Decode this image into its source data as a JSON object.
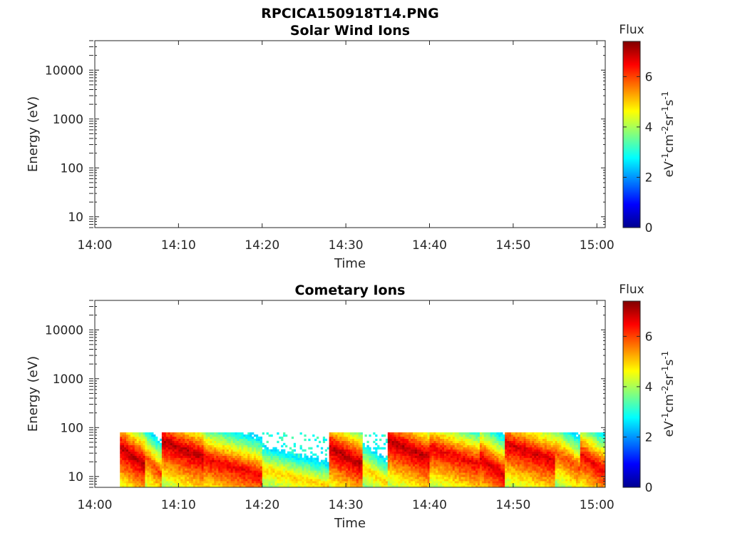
{
  "figure": {
    "title": "RPCICA150918T14.PNG"
  },
  "colors": {
    "axis": "#262626",
    "colormap": [
      "#00008f",
      "#0000ff",
      "#0080ff",
      "#00ffff",
      "#80ff80",
      "#ffff00",
      "#ff8000",
      "#ff0000",
      "#800000"
    ]
  },
  "chart_data": [
    {
      "type": "heatmap",
      "title": "Solar Wind Ions",
      "xlabel": "Time",
      "ylabel": "Energy (eV)",
      "x_ticks": [
        "14:00",
        "14:10",
        "14:20",
        "14:30",
        "14:40",
        "14:50",
        "15:00"
      ],
      "y_scale": "log",
      "y_ticks": [
        "10",
        "100",
        "1000",
        "10000"
      ],
      "ylim": [
        6,
        40000
      ],
      "colorbar": {
        "title": "Flux",
        "units": "eV-1cm-2sr-1s-1",
        "ticks": [
          "0",
          "2",
          "4",
          "6"
        ],
        "range": [
          0,
          7.4
        ]
      },
      "data_present": false,
      "grid": false
    },
    {
      "type": "heatmap",
      "title": "Cometary Ions",
      "xlabel": "Time",
      "ylabel": "Energy (eV)",
      "x_ticks": [
        "14:00",
        "14:10",
        "14:20",
        "14:30",
        "14:40",
        "14:50",
        "15:00"
      ],
      "y_scale": "log",
      "y_ticks": [
        "10",
        "100",
        "1000",
        "10000"
      ],
      "ylim": [
        6,
        40000
      ],
      "colorbar": {
        "title": "Flux",
        "units": "eV-1cm-2sr-1s-1",
        "ticks": [
          "0",
          "2",
          "4",
          "6"
        ],
        "range": [
          0,
          7.4
        ]
      },
      "data_present": true,
      "grid": false,
      "energy_max_eV": 80,
      "data_start": "14:03",
      "data_end": "15:01",
      "bands": [
        {
          "start": "14:03",
          "end": "14:06",
          "peak_energy_eV": 25,
          "peak_flux": 7.0
        },
        {
          "start": "14:06",
          "end": "14:08",
          "peak_energy_eV": 15,
          "peak_flux": 6.0
        },
        {
          "start": "14:08",
          "end": "14:13",
          "peak_energy_eV": 35,
          "peak_flux": 7.0
        },
        {
          "start": "14:13",
          "end": "14:20",
          "peak_energy_eV": 15,
          "peak_flux": 6.6
        },
        {
          "start": "14:20",
          "end": "14:28",
          "peak_energy_eV": 9,
          "peak_flux": 5.0
        },
        {
          "start": "14:28",
          "end": "14:32",
          "peak_energy_eV": 25,
          "peak_flux": 7.0
        },
        {
          "start": "14:32",
          "end": "14:35",
          "peak_energy_eV": 10,
          "peak_flux": 5.0
        },
        {
          "start": "14:35",
          "end": "14:40",
          "peak_energy_eV": 35,
          "peak_flux": 7.0
        },
        {
          "start": "14:40",
          "end": "14:46",
          "peak_energy_eV": 25,
          "peak_flux": 6.6
        },
        {
          "start": "14:46",
          "end": "14:49",
          "peak_energy_eV": 15,
          "peak_flux": 6.8
        },
        {
          "start": "14:49",
          "end": "14:55",
          "peak_energy_eV": 30,
          "peak_flux": 6.8
        },
        {
          "start": "14:55",
          "end": "14:58",
          "peak_energy_eV": 20,
          "peak_flux": 6.0
        },
        {
          "start": "14:58",
          "end": "15:01",
          "peak_energy_eV": 18,
          "peak_flux": 6.6
        }
      ]
    }
  ]
}
